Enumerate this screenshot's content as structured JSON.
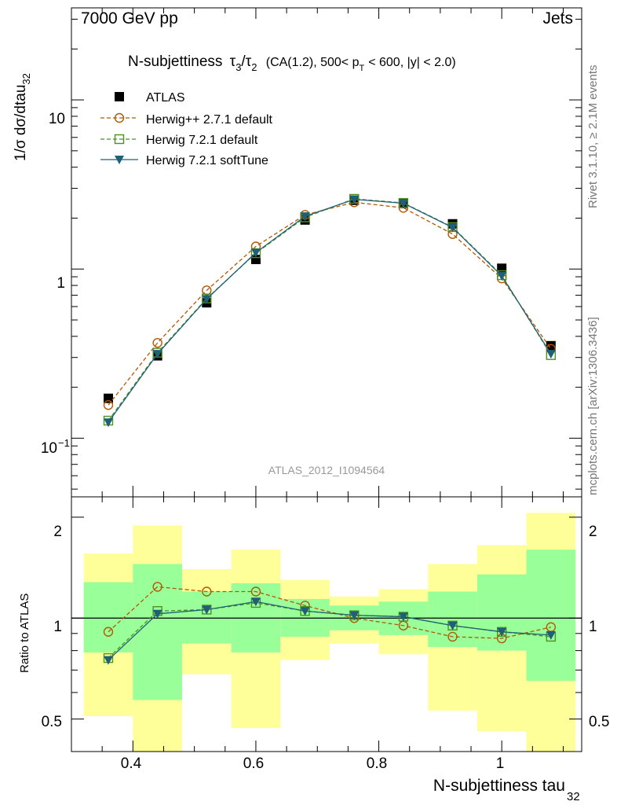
{
  "header": {
    "left": "7000 GeV pp",
    "right": "Jets",
    "side_rivet": "Rivet 3.1.10, ≥ 2.1M events",
    "side_mcplots": "mcplots.cern.ch [arXiv:1306.3436]",
    "analysis_id": "ATLAS_2012_I1094564"
  },
  "title": {
    "main": "N-subjettiness",
    "ratio_num": "τ",
    "num_sub": "3",
    "slash": "/",
    "ratio_den": "τ",
    "den_sub": "2",
    "cond1": "(CA(1.2), 500< p",
    "cond_sub": "T",
    "cond2": "< 600, |y| < 2.0)"
  },
  "axes": {
    "ylabel_main": "1/σ dσ/dtau",
    "ylabel_main_sub": "32",
    "ylabel_ratio": "Ratio to ATLAS",
    "xlabel": "N-subjettiness tau",
    "xlabel_sub": "32",
    "main_ytick_labels": [
      "10",
      "1",
      "10"
    ],
    "main_ytick_exp": "−1",
    "ratio_ytick_labels": [
      "2",
      "1",
      "0.5"
    ],
    "xtick_labels": [
      "0.4",
      "0.6",
      "0.8",
      "1"
    ]
  },
  "legend": [
    {
      "label": "ATLAS",
      "color": "#000000",
      "marker": "filled-square",
      "line": "none"
    },
    {
      "label": "Herwig++ 2.7.1 default",
      "color": "#b35806",
      "marker": "open-circle",
      "line": "dashed"
    },
    {
      "label": "Herwig 7.2.1 default",
      "color": "#4d9221",
      "marker": "open-square",
      "line": "dashed"
    },
    {
      "label": "Herwig 7.2.1 softTune",
      "color": "#1f5f78",
      "marker": "filled-triangle-down",
      "line": "solid"
    }
  ],
  "chart_data": {
    "type": "line",
    "xlabel": "N-subjettiness tau32",
    "ylabel": "1/σ dσ/dtau32",
    "xlim": [
      0.3,
      1.13
    ],
    "ylim": [
      0.045,
      35
    ],
    "yscale": "log",
    "ratio_ylim": [
      0.4,
      2.3
    ],
    "ratio_yscale": "log",
    "x": [
      0.36,
      0.44,
      0.52,
      0.6,
      0.68,
      0.76,
      0.84,
      0.92,
      1.0,
      1.08
    ],
    "bin_edges": [
      0.32,
      0.4,
      0.48,
      0.56,
      0.64,
      0.72,
      0.8,
      0.88,
      0.96,
      1.04,
      1.12
    ],
    "series": [
      {
        "name": "ATLAS",
        "values": [
          0.172,
          0.307,
          0.632,
          1.14,
          1.95,
          2.55,
          2.44,
          1.85,
          1.01,
          0.352
        ]
      },
      {
        "name": "Herwig++ 2.7.1 default",
        "values": [
          0.157,
          0.366,
          0.748,
          1.36,
          2.09,
          2.48,
          2.3,
          1.61,
          0.88,
          0.337
        ]
      },
      {
        "name": "Herwig 7.2.1 default",
        "values": [
          0.127,
          0.32,
          0.67,
          1.24,
          2.02,
          2.6,
          2.46,
          1.77,
          0.92,
          0.31
        ]
      },
      {
        "name": "Herwig 7.2.1 softTune",
        "values": [
          0.124,
          0.315,
          0.665,
          1.25,
          2.05,
          2.58,
          2.45,
          1.76,
          0.91,
          0.315
        ]
      }
    ],
    "ratio_series": [
      {
        "name": "Herwig++ 2.7.1 default",
        "values": [
          0.91,
          1.24,
          1.2,
          1.2,
          1.09,
          1.0,
          0.95,
          0.88,
          0.87,
          0.94
        ]
      },
      {
        "name": "Herwig 7.2.1 default",
        "values": [
          0.76,
          1.05,
          1.06,
          1.11,
          1.05,
          1.02,
          1.01,
          0.95,
          0.91,
          0.88
        ]
      },
      {
        "name": "Herwig 7.2.1 softTune",
        "values": [
          0.75,
          1.03,
          1.06,
          1.12,
          1.05,
          1.02,
          1.01,
          0.95,
          0.91,
          0.89
        ]
      }
    ],
    "ratio_band_green": {
      "lower": [
        0.79,
        0.57,
        0.84,
        0.79,
        0.88,
        0.92,
        0.89,
        0.82,
        0.8,
        0.65
      ],
      "upper": [
        1.28,
        1.45,
        1.2,
        1.27,
        1.14,
        1.09,
        1.12,
        1.2,
        1.35,
        1.6
      ]
    },
    "ratio_band_yellow": {
      "lower": [
        0.51,
        0.36,
        0.68,
        0.47,
        0.75,
        0.84,
        0.78,
        0.53,
        0.46,
        0.35
      ],
      "upper": [
        1.56,
        1.89,
        1.4,
        1.6,
        1.3,
        1.16,
        1.22,
        1.45,
        1.65,
        2.06
      ]
    },
    "colors": {
      "green_band": "#99ff99",
      "yellow_band": "#ffff99",
      "ratio_ref_line": "#000000"
    },
    "grid": false
  }
}
